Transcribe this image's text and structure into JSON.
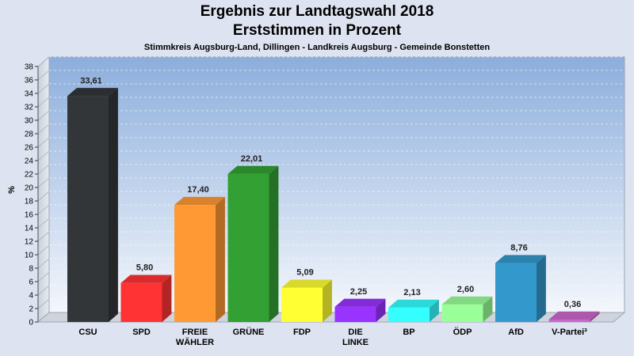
{
  "header": {
    "title_line1": "Ergebnis zur Landtagswahl 2018",
    "title_line2": "Erststimmen in Prozent",
    "subtitle": "Stimmkreis Augsburg-Land, Dillingen - Landkreis Augsburg - Gemeinde Bonstetten"
  },
  "chart_data": {
    "type": "bar",
    "title": "Ergebnis zur Landtagswahl 2018 – Erststimmen in Prozent",
    "xlabel": "",
    "ylabel": "%",
    "ylim": [
      0,
      38
    ],
    "yticks": [
      0,
      2,
      4,
      6,
      8,
      10,
      12,
      14,
      16,
      18,
      20,
      22,
      24,
      26,
      28,
      30,
      32,
      34,
      36,
      38
    ],
    "grid": true,
    "categories": [
      [
        "CSU"
      ],
      [
        "SPD"
      ],
      [
        "FREIE",
        "WÄHLER"
      ],
      [
        "GRÜNE"
      ],
      [
        "FDP"
      ],
      [
        "DIE",
        "LINKE"
      ],
      [
        "BP"
      ],
      [
        "ÖDP"
      ],
      [
        "AfD"
      ],
      [
        "V-Partei³"
      ]
    ],
    "values": [
      33.61,
      5.8,
      17.4,
      22.01,
      5.09,
      2.25,
      2.13,
      2.6,
      8.76,
      0.36
    ],
    "value_labels": [
      "33,61",
      "5,80",
      "17,40",
      "22,01",
      "5,09",
      "2,25",
      "2,13",
      "2,60",
      "8,76",
      "0,36"
    ],
    "colors": [
      "#333639",
      "#ff3333",
      "#ff9933",
      "#33a033",
      "#ffff33",
      "#9933ff",
      "#33ffff",
      "#99ff99",
      "#3399cc",
      "#cc66cc"
    ]
  }
}
